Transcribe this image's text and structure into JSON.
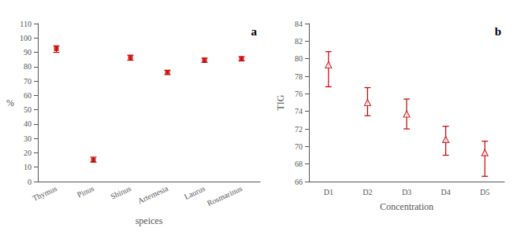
{
  "chart_data": [
    {
      "type": "errorbar",
      "annotation": "a",
      "categories": [
        "Thymus",
        "Pinus",
        "Shinus",
        "Artemesia",
        "Laurus",
        "Rosmarinus"
      ],
      "values": [
        92.5,
        15.0,
        86.5,
        76.0,
        84.5,
        85.5
      ],
      "yerr_lower": [
        2.5,
        1.5,
        2.0,
        1.5,
        1.5,
        1.5
      ],
      "yerr_upper": [
        2.0,
        2.0,
        1.5,
        1.5,
        1.5,
        1.5
      ],
      "xlabel": "speices",
      "ylabel": "%",
      "ylim": [
        0,
        110
      ],
      "yticks": [
        0,
        10,
        20,
        30,
        40,
        50,
        60,
        70,
        80,
        90,
        100,
        110
      ],
      "color": "#cc0000",
      "marker": "square",
      "grid": false
    },
    {
      "type": "errorbar",
      "annotation": "b",
      "categories": [
        "D1",
        "D2",
        "D3",
        "D4",
        "D5"
      ],
      "values": [
        79.3,
        75.0,
        73.7,
        70.8,
        69.3
      ],
      "yerr_lower": [
        2.5,
        1.5,
        1.7,
        1.8,
        2.7
      ],
      "yerr_upper": [
        1.5,
        1.7,
        1.7,
        1.5,
        1.3
      ],
      "xlabel": "Concentration",
      "ylabel": "TIG",
      "ylim": [
        66,
        84
      ],
      "yticks": [
        66,
        68,
        70,
        72,
        74,
        76,
        78,
        80,
        82,
        84
      ],
      "color": "#cc0000",
      "marker": "triangle",
      "grid": false
    }
  ]
}
